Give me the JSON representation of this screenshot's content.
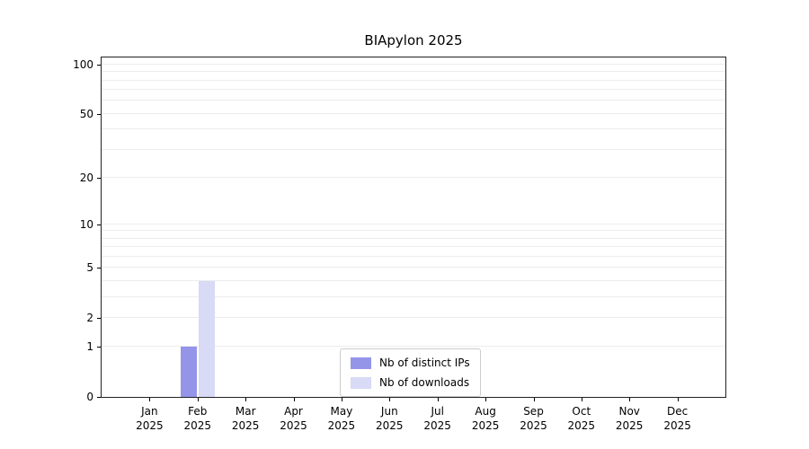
{
  "title": "BIApylon 2025",
  "chart_data": {
    "type": "bar",
    "title": "BIApylon 2025",
    "categories": [
      "Jan",
      "Feb",
      "Mar",
      "Apr",
      "May",
      "Jun",
      "Jul",
      "Aug",
      "Sep",
      "Oct",
      "Nov",
      "Dec"
    ],
    "year_label": "2025",
    "series": [
      {
        "name": "Nb of distinct IPs",
        "color": "#9495e8",
        "values": [
          0,
          1,
          0,
          0,
          0,
          0,
          0,
          0,
          0,
          0,
          0,
          0
        ]
      },
      {
        "name": "Nb of downloads",
        "color": "#d8daf6",
        "values": [
          0,
          4,
          0,
          0,
          0,
          0,
          0,
          0,
          0,
          0,
          0,
          0
        ]
      }
    ],
    "yscale": "log10(v+1)",
    "yticks": [
      0,
      1,
      2,
      5,
      10,
      20,
      50,
      100
    ],
    "gridline_values": [
      1,
      2,
      3,
      4,
      5,
      6,
      7,
      8,
      9,
      10,
      20,
      30,
      40,
      50,
      60,
      70,
      80,
      90,
      100
    ],
    "ylim": [
      0,
      110
    ],
    "xlabel": "",
    "ylabel": "",
    "grid": true,
    "legend_position": "lower center"
  },
  "colors": {
    "background": "#ffffff",
    "axis": "#222222",
    "gridline": "#ececec",
    "text": "#000000",
    "legend_border": "#cccccc"
  }
}
